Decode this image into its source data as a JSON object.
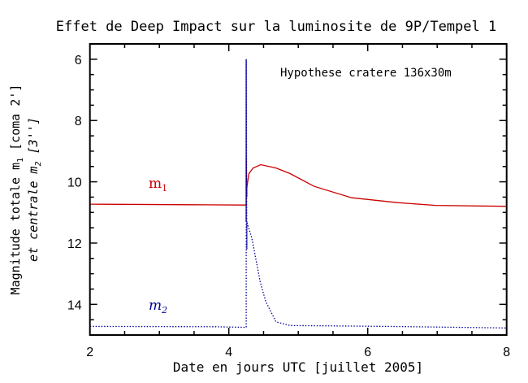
{
  "chart_data": {
    "type": "line",
    "title": "Effet de Deep Impact sur la luminosite de 9P/Tempel 1",
    "xlabel": "Date en jours UTC [juillet 2005]",
    "ylabel_line1": "Magnitude totale m",
    "ylabel_line1_sub": "1",
    "ylabel_line1_end": " [coma 2']",
    "ylabel_line2": "et centrale m",
    "ylabel_line2_sub": "2",
    "ylabel_line2_end": " [3'']",
    "annotation": "Hypothese cratere 136x30m",
    "xlim": [
      2,
      8
    ],
    "ylim": [
      15,
      5.5
    ],
    "y_inverted": true,
    "xticks": [
      2,
      4,
      6,
      8
    ],
    "yticks": [
      6,
      8,
      10,
      12,
      14
    ],
    "grid": false,
    "colors": {
      "m1": "#cc0000",
      "m2": "#000099"
    },
    "series": [
      {
        "name": "m1",
        "label": "m",
        "label_sub": "1",
        "style": "solid",
        "x": [
          2,
          3.5,
          4.25,
          4.25,
          4.26,
          4.26,
          4.27,
          4.29,
          4.35,
          4.46,
          4.68,
          4.88,
          5.23,
          5.77,
          6.43,
          6.98,
          7.99
        ],
        "y": [
          10.73,
          10.75,
          10.76,
          9.2,
          10.5,
          10.2,
          10.02,
          9.73,
          9.55,
          9.44,
          9.55,
          9.73,
          10.15,
          10.52,
          10.68,
          10.77,
          10.8
        ]
      },
      {
        "name": "m2",
        "label": "m",
        "label_sub": "2",
        "style": "dotted",
        "x": [
          2,
          3.8,
          4.25,
          4.25,
          4.26,
          4.26,
          4.27,
          4.33,
          4.45,
          4.53,
          4.68,
          4.88,
          6.28,
          7.99
        ],
        "y": [
          14.72,
          14.73,
          14.75,
          6.0,
          12.2,
          11.3,
          11.4,
          11.82,
          13.25,
          13.9,
          14.57,
          14.69,
          14.72,
          14.77
        ]
      }
    ]
  }
}
